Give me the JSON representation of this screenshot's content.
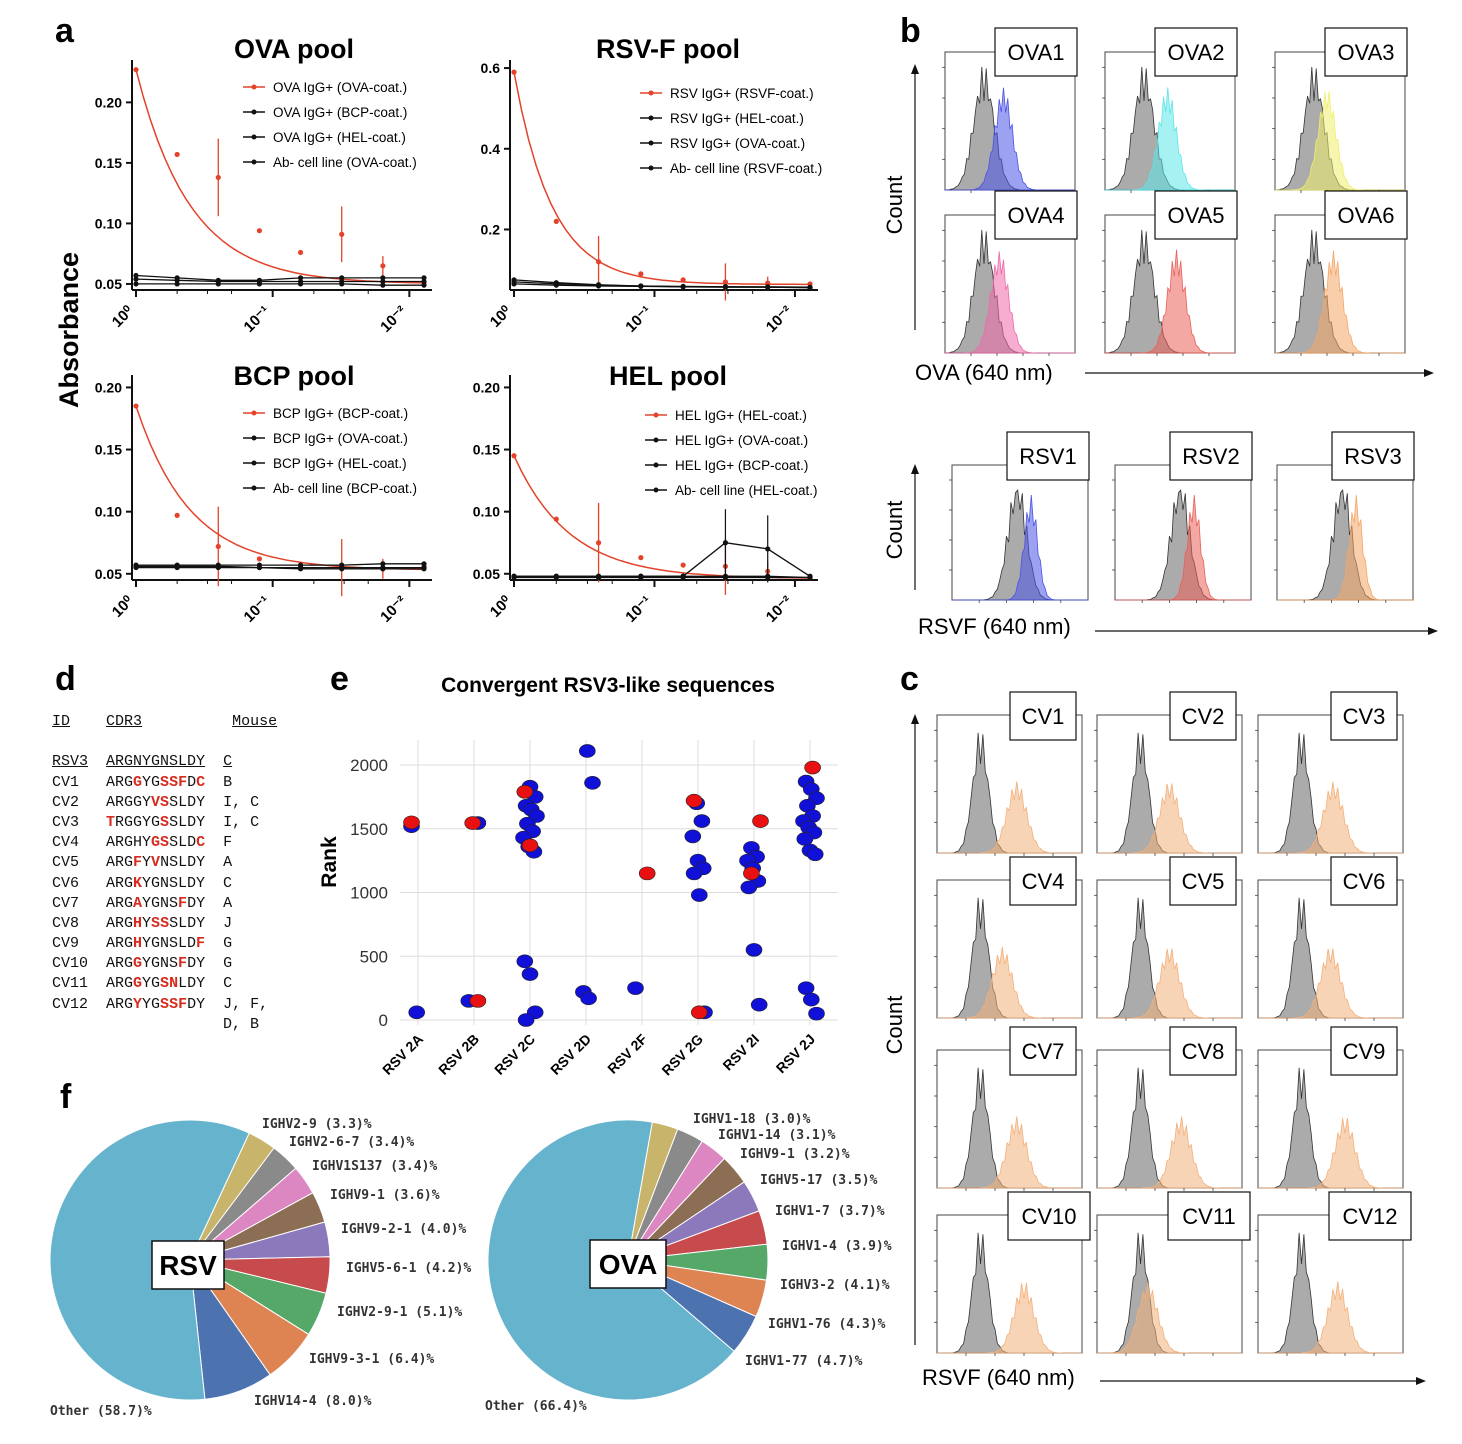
{
  "panel_letters": [
    "a",
    "b",
    "c",
    "d",
    "e",
    "f"
  ],
  "panel_a": {
    "ylabel": "Absorbance",
    "xticks": [
      "10⁰",
      "10⁻¹",
      "10⁻²"
    ],
    "subplots": [
      {
        "title": "OVA pool",
        "yticks": [
          "0.05",
          "0.10",
          "0.15",
          "0.20"
        ],
        "legend": [
          "OVA IgG+ (OVA-coat.)",
          "OVA IgG+ (BCP-coat.)",
          "OVA IgG+ (HEL-coat.)",
          "Ab- cell line (OVA-coat.)"
        ]
      },
      {
        "title": "RSV-F pool",
        "yticks": [
          "0.2",
          "0.4",
          "0.6"
        ],
        "legend": [
          "RSV IgG+ (RSVF-coat.)",
          "RSV IgG+ (HEL-coat.)",
          "RSV IgG+ (OVA-coat.)",
          "Ab- cell line (RSVF-coat.)"
        ]
      },
      {
        "title": "BCP pool",
        "yticks": [
          "0.05",
          "0.10",
          "0.15",
          "0.20"
        ],
        "legend": [
          "BCP IgG+ (BCP-coat.)",
          "BCP IgG+ (OVA-coat.)",
          "BCP IgG+ (HEL-coat.)",
          "Ab- cell line (BCP-coat.)"
        ]
      },
      {
        "title": "HEL pool",
        "yticks": [
          "0.05",
          "0.10",
          "0.15",
          "0.20"
        ],
        "legend": [
          "HEL IgG+ (HEL-coat.)",
          "HEL IgG+ (OVA-coat.)",
          "HEL IgG+ (BCP-coat.)",
          "Ab- cell line (HEL-coat.)"
        ]
      }
    ]
  },
  "panel_b": {
    "ova_labels": [
      "OVA1",
      "OVA2",
      "OVA3",
      "OVA4",
      "OVA5",
      "OVA6"
    ],
    "rsv_labels": [
      "RSV1",
      "RSV2",
      "RSV3"
    ],
    "ylabel": "Count",
    "ova_xlabel": "OVA (640 nm)",
    "rsv_xlabel": "RSVF (640 nm)"
  },
  "panel_c": {
    "labels": [
      "CV1",
      "CV2",
      "CV3",
      "CV4",
      "CV5",
      "CV6",
      "CV7",
      "CV8",
      "CV9",
      "CV10",
      "CV11",
      "CV12"
    ],
    "ylabel": "Count",
    "xlabel": "RSVF (640 nm)"
  },
  "panel_d": {
    "headers": [
      "ID",
      "CDR3",
      "Mouse"
    ],
    "rows": [
      {
        "id": "RSV3",
        "cdr3": "ARGNYGNSLDY",
        "mouse": "C",
        "mut": []
      },
      {
        "id": "CV1",
        "cdr3": "ARGGYGSSFDC",
        "mouse": "B",
        "mut": [
          3,
          6,
          7,
          8,
          10
        ]
      },
      {
        "id": "CV2",
        "cdr3": "ARGGYVSSLDY",
        "mouse": "I, C",
        "mut": [
          5,
          6
        ]
      },
      {
        "id": "CV3",
        "cdr3": "TRGGYGSSLDY",
        "mouse": "I, C",
        "mut": [
          0,
          6
        ]
      },
      {
        "id": "CV4",
        "cdr3": "ARGHYGSSLDC",
        "mouse": "F",
        "mut": [
          5,
          6,
          10
        ]
      },
      {
        "id": "CV5",
        "cdr3": "ARGFYVNSLDY",
        "mouse": "A",
        "mut": [
          3,
          5
        ]
      },
      {
        "id": "CV6",
        "cdr3": "ARGKYGNSLDY",
        "mouse": "C",
        "mut": [
          3
        ]
      },
      {
        "id": "CV7",
        "cdr3": "ARGAYGNSFDY",
        "mouse": "A",
        "mut": [
          3,
          8
        ]
      },
      {
        "id": "CV8",
        "cdr3": "ARGHYSSSLDY",
        "mouse": "J",
        "mut": [
          3,
          5,
          6
        ]
      },
      {
        "id": "CV9",
        "cdr3": "ARGHYGNSLDF",
        "mouse": "G",
        "mut": [
          3,
          10
        ]
      },
      {
        "id": "CV10",
        "cdr3": "ARGGYGNSFDY",
        "mouse": "G",
        "mut": [
          3,
          8
        ]
      },
      {
        "id": "CV11",
        "cdr3": "ARGGYGSNLDY",
        "mouse": "C",
        "mut": [
          3,
          6,
          7
        ]
      },
      {
        "id": "CV12",
        "cdr3": "ARGYYGSSFDY",
        "mouse": "J, F,",
        "mut": [
          3,
          6,
          7,
          8
        ]
      }
    ],
    "extra_mouse": "D, B"
  },
  "panel_e": {
    "title": "Convergent RSV3-like sequences",
    "ylabel": "Rank",
    "yticks": [
      "0",
      "500",
      "1000",
      "1500",
      "2000"
    ]
  },
  "panel_f": {
    "rsv_label": "RSV",
    "ova_label": "OVA"
  },
  "chart_data": [
    {
      "type": "line",
      "title": "OVA pool",
      "ylabel": "Absorbance",
      "xscale": "log",
      "xlim": [
        1,
        0.0078
      ],
      "ylim": [
        0.045,
        0.235
      ],
      "x": [
        1,
        0.5,
        0.25,
        0.125,
        0.0625,
        0.03125,
        0.015625,
        0.0078125
      ],
      "series": [
        {
          "name": "OVA IgG+ (OVA-coat.)",
          "values": [
            0.227,
            0.157,
            0.138,
            0.094,
            0.076,
            0.091,
            0.065,
            0.051
          ]
        },
        {
          "name": "OVA IgG+ (BCP-coat.)",
          "values": [
            0.057,
            0.055,
            0.053,
            0.053,
            0.055,
            0.055,
            0.055,
            0.055
          ]
        },
        {
          "name": "OVA IgG+ (HEL-coat.)",
          "values": [
            0.054,
            0.053,
            0.052,
            0.052,
            0.052,
            0.052,
            0.052,
            0.052
          ]
        },
        {
          "name": "Ab- cell line (OVA-coat.)",
          "values": [
            0.05,
            0.05,
            0.05,
            0.05,
            0.05,
            0.05,
            0.049,
            0.049
          ]
        }
      ]
    },
    {
      "type": "line",
      "title": "RSV-F pool",
      "ylabel": "Absorbance",
      "xscale": "log",
      "xlim": [
        1,
        0.0078
      ],
      "ylim": [
        0.05,
        0.62
      ],
      "x": [
        1,
        0.5,
        0.25,
        0.125,
        0.0625,
        0.03125,
        0.015625,
        0.0078125
      ],
      "series": [
        {
          "name": "RSV IgG+ (RSVF-coat.)",
          "values": [
            0.59,
            0.22,
            0.12,
            0.09,
            0.075,
            0.07,
            0.067,
            0.065
          ]
        },
        {
          "name": "RSV IgG+ (HEL-coat.)",
          "values": [
            0.075,
            0.068,
            0.063,
            0.06,
            0.058,
            0.058,
            0.057,
            0.056
          ]
        },
        {
          "name": "RSV IgG+ (OVA-coat.)",
          "values": [
            0.07,
            0.065,
            0.062,
            0.06,
            0.059,
            0.058,
            0.058,
            0.057
          ]
        },
        {
          "name": "Ab- cell line (RSVF-coat.)",
          "values": [
            0.065,
            0.062,
            0.06,
            0.059,
            0.058,
            0.057,
            0.057,
            0.056
          ]
        }
      ]
    },
    {
      "type": "line",
      "title": "BCP pool",
      "ylabel": "Absorbance",
      "xscale": "log",
      "xlim": [
        1,
        0.0078
      ],
      "ylim": [
        0.045,
        0.21
      ],
      "x": [
        1,
        0.5,
        0.25,
        0.125,
        0.0625,
        0.03125,
        0.015625,
        0.0078125
      ],
      "series": [
        {
          "name": "BCP IgG+ (BCP-coat.)",
          "values": [
            0.185,
            0.097,
            0.072,
            0.062,
            0.056,
            0.055,
            0.054,
            0.056
          ]
        },
        {
          "name": "BCP IgG+ (OVA-coat.)",
          "values": [
            0.057,
            0.057,
            0.057,
            0.057,
            0.057,
            0.057,
            0.058,
            0.058
          ]
        },
        {
          "name": "BCP IgG+ (HEL-coat.)",
          "values": [
            0.056,
            0.056,
            0.056,
            0.055,
            0.055,
            0.055,
            0.055,
            0.055
          ]
        },
        {
          "name": "Ab- cell line (BCP-coat.)",
          "values": [
            0.055,
            0.055,
            0.055,
            0.055,
            0.054,
            0.054,
            0.054,
            0.054
          ]
        }
      ]
    },
    {
      "type": "line",
      "title": "HEL pool",
      "ylabel": "Absorbance",
      "xscale": "log",
      "xlim": [
        1,
        0.0078
      ],
      "ylim": [
        0.045,
        0.21
      ],
      "x": [
        1,
        0.5,
        0.25,
        0.125,
        0.0625,
        0.03125,
        0.015625,
        0.0078125
      ],
      "series": [
        {
          "name": "HEL IgG+ (HEL-coat.)",
          "values": [
            0.145,
            0.094,
            0.075,
            0.063,
            0.057,
            0.056,
            0.052,
            0.047
          ]
        },
        {
          "name": "HEL IgG+ (OVA-coat.)",
          "values": [
            0.048,
            0.048,
            0.048,
            0.048,
            0.048,
            0.048,
            0.048,
            0.047
          ]
        },
        {
          "name": "HEL IgG+ (BCP-coat.)",
          "values": [
            0.048,
            0.048,
            0.048,
            0.048,
            0.048,
            0.075,
            0.07,
            0.048
          ]
        },
        {
          "name": "Ab- cell line (HEL-coat.)",
          "values": [
            0.047,
            0.047,
            0.047,
            0.047,
            0.047,
            0.047,
            0.047,
            0.047
          ]
        }
      ]
    },
    {
      "type": "scatter",
      "title": "Convergent RSV3-like sequences",
      "ylabel": "Rank",
      "ylim": [
        0,
        2200
      ],
      "categories": [
        "RSV 2A",
        "RSV 2B",
        "RSV 2C",
        "RSV 2D",
        "RSV 2F",
        "RSV 2G",
        "RSV 2I",
        "RSV 2J"
      ],
      "series": [
        {
          "color": "#1010d8",
          "points": [
            [
              0,
              1520
            ],
            [
              0,
              60
            ],
            [
              1,
              1545
            ],
            [
              1,
              150
            ],
            [
              2,
              1830
            ],
            [
              2,
              1750
            ],
            [
              2,
              1680
            ],
            [
              2,
              1650
            ],
            [
              2,
              1600
            ],
            [
              2,
              1540
            ],
            [
              2,
              1480
            ],
            [
              2,
              1430
            ],
            [
              2,
              1360
            ],
            [
              2,
              1320
            ],
            [
              2,
              460
            ],
            [
              2,
              360
            ],
            [
              2,
              60
            ],
            [
              2,
              0
            ],
            [
              3,
              2110
            ],
            [
              3,
              1860
            ],
            [
              3,
              220
            ],
            [
              3,
              170
            ],
            [
              4,
              250
            ],
            [
              5,
              1700
            ],
            [
              5,
              1560
            ],
            [
              5,
              1440
            ],
            [
              5,
              1250
            ],
            [
              5,
              1190
            ],
            [
              5,
              1150
            ],
            [
              5,
              980
            ],
            [
              5,
              60
            ],
            [
              6,
              1350
            ],
            [
              6,
              1280
            ],
            [
              6,
              1250
            ],
            [
              6,
              1190
            ],
            [
              6,
              1090
            ],
            [
              6,
              1040
            ],
            [
              6,
              550
            ],
            [
              6,
              120
            ],
            [
              7,
              1870
            ],
            [
              7,
              1810
            ],
            [
              7,
              1740
            ],
            [
              7,
              1680
            ],
            [
              7,
              1600
            ],
            [
              7,
              1560
            ],
            [
              7,
              1510
            ],
            [
              7,
              1470
            ],
            [
              7,
              1420
            ],
            [
              7,
              1330
            ],
            [
              7,
              1300
            ],
            [
              7,
              250
            ],
            [
              7,
              160
            ],
            [
              7,
              50
            ]
          ]
        },
        {
          "color": "#e81010",
          "points": [
            [
              0,
              1550
            ],
            [
              1,
              1545
            ],
            [
              1,
              150
            ],
            [
              2,
              1790
            ],
            [
              2,
              1370
            ],
            [
              4,
              1150
            ],
            [
              5,
              1720
            ],
            [
              5,
              60
            ],
            [
              6,
              1560
            ],
            [
              6,
              1150
            ],
            [
              7,
              1980
            ]
          ]
        }
      ]
    },
    {
      "type": "pie",
      "label": "RSV",
      "categories": [
        "IGHV2-9 (3.3)%",
        "IGHV2-6-7 (3.4)%",
        "IGHV1S137 (3.4)%",
        "IGHV9-1 (3.6)%",
        "IGHV9-2-1 (4.0)%",
        "IGHV5-6-1 (4.2)%",
        "IGHV2-9-1 (5.1)%",
        "IGHV9-3-1 (6.4)%",
        "IGHV14-4 (8.0)%",
        "Other (58.7)%"
      ],
      "values": [
        3.3,
        3.4,
        3.4,
        3.6,
        4.0,
        4.2,
        5.1,
        6.4,
        8.0,
        58.7
      ],
      "colors": [
        "#c9b46b",
        "#8a8a8a",
        "#dd87c2",
        "#8c6e54",
        "#8c79bb",
        "#c74a4c",
        "#55a868",
        "#dd8452",
        "#4c72b0",
        "#66b3cd"
      ]
    },
    {
      "type": "pie",
      "label": "OVA",
      "categories": [
        "IGHV1-18 (3.0)%",
        "IGHV1-14 (3.1)%",
        "IGHV9-1 (3.2)%",
        "IGHV5-17 (3.5)%",
        "IGHV1-7 (3.7)%",
        "IGHV1-4 (3.9)%",
        "IGHV3-2 (4.1)%",
        "IGHV1-76 (4.3)%",
        "IGHV1-77 (4.7)%",
        "Other (66.4)%"
      ],
      "values": [
        3.0,
        3.1,
        3.2,
        3.5,
        3.7,
        3.9,
        4.1,
        4.3,
        4.7,
        66.4
      ],
      "colors": [
        "#c9b46b",
        "#8a8a8a",
        "#dd87c2",
        "#8c6e54",
        "#8c79bb",
        "#c74a4c",
        "#55a868",
        "#dd8452",
        "#4c72b0",
        "#66b3cd"
      ]
    }
  ]
}
